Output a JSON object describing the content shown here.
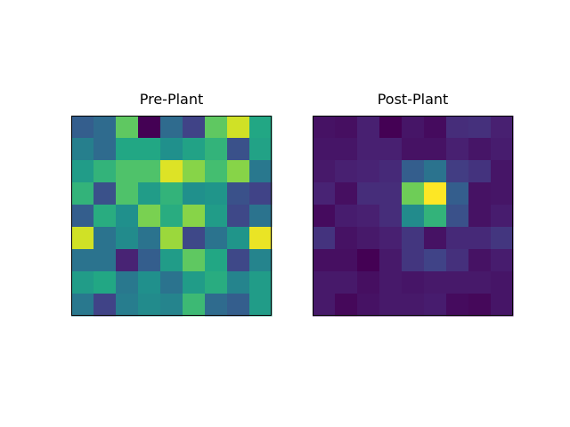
{
  "chart_data": [
    {
      "type": "heatmap",
      "title": "Pre-Plant",
      "colormap": "viridis",
      "colorscale_range": [
        0,
        1
      ],
      "axes_visible": false,
      "rows": 9,
      "cols": 9,
      "values": [
        [
          0.3,
          0.35,
          0.75,
          0.0,
          0.35,
          0.2,
          0.75,
          0.93,
          0.6
        ],
        [
          0.43,
          0.35,
          0.6,
          0.6,
          0.5,
          0.58,
          0.65,
          0.25,
          0.58
        ],
        [
          0.55,
          0.65,
          0.72,
          0.72,
          0.95,
          0.82,
          0.7,
          0.82,
          0.4
        ],
        [
          0.65,
          0.25,
          0.72,
          0.55,
          0.65,
          0.5,
          0.52,
          0.25,
          0.2
        ],
        [
          0.3,
          0.62,
          0.5,
          0.8,
          0.62,
          0.82,
          0.55,
          0.22,
          0.38
        ],
        [
          0.93,
          0.38,
          0.48,
          0.38,
          0.85,
          0.22,
          0.38,
          0.52,
          0.97
        ],
        [
          0.38,
          0.38,
          0.1,
          0.3,
          0.55,
          0.75,
          0.6,
          0.22,
          0.45
        ],
        [
          0.55,
          0.6,
          0.4,
          0.5,
          0.38,
          0.55,
          0.62,
          0.45,
          0.55
        ],
        [
          0.4,
          0.2,
          0.42,
          0.48,
          0.45,
          0.68,
          0.35,
          0.3,
          0.55
        ]
      ]
    },
    {
      "type": "heatmap",
      "title": "Post-Plant",
      "colormap": "viridis",
      "colorscale_range": [
        0,
        1
      ],
      "axes_visible": false,
      "rows": 9,
      "cols": 9,
      "values": [
        [
          0.05,
          0.04,
          0.09,
          0.0,
          0.06,
          0.03,
          0.13,
          0.14,
          0.09
        ],
        [
          0.06,
          0.06,
          0.09,
          0.09,
          0.05,
          0.05,
          0.09,
          0.06,
          0.08
        ],
        [
          0.07,
          0.09,
          0.1,
          0.12,
          0.3,
          0.38,
          0.18,
          0.15,
          0.06
        ],
        [
          0.1,
          0.04,
          0.13,
          0.13,
          0.78,
          1.0,
          0.3,
          0.05,
          0.06
        ],
        [
          0.03,
          0.08,
          0.09,
          0.13,
          0.48,
          0.65,
          0.25,
          0.05,
          0.08
        ],
        [
          0.15,
          0.05,
          0.07,
          0.09,
          0.16,
          0.05,
          0.12,
          0.12,
          0.16
        ],
        [
          0.04,
          0.04,
          0.0,
          0.07,
          0.16,
          0.2,
          0.14,
          0.05,
          0.08
        ],
        [
          0.07,
          0.07,
          0.04,
          0.07,
          0.06,
          0.07,
          0.07,
          0.07,
          0.06
        ],
        [
          0.07,
          0.02,
          0.05,
          0.07,
          0.07,
          0.08,
          0.03,
          0.02,
          0.06
        ]
      ]
    }
  ]
}
